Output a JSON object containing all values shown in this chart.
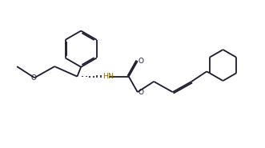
{
  "bg_color": "#ffffff",
  "line_color": "#1a1a2e",
  "line_width": 1.3,
  "label_color_HN": "#8B6914",
  "label_color_O": "#1a1a2e",
  "figsize": [
    3.31,
    1.85
  ],
  "dpi": 100,
  "xlim": [
    0,
    10.5
  ],
  "ylim": [
    0,
    5.6
  ]
}
